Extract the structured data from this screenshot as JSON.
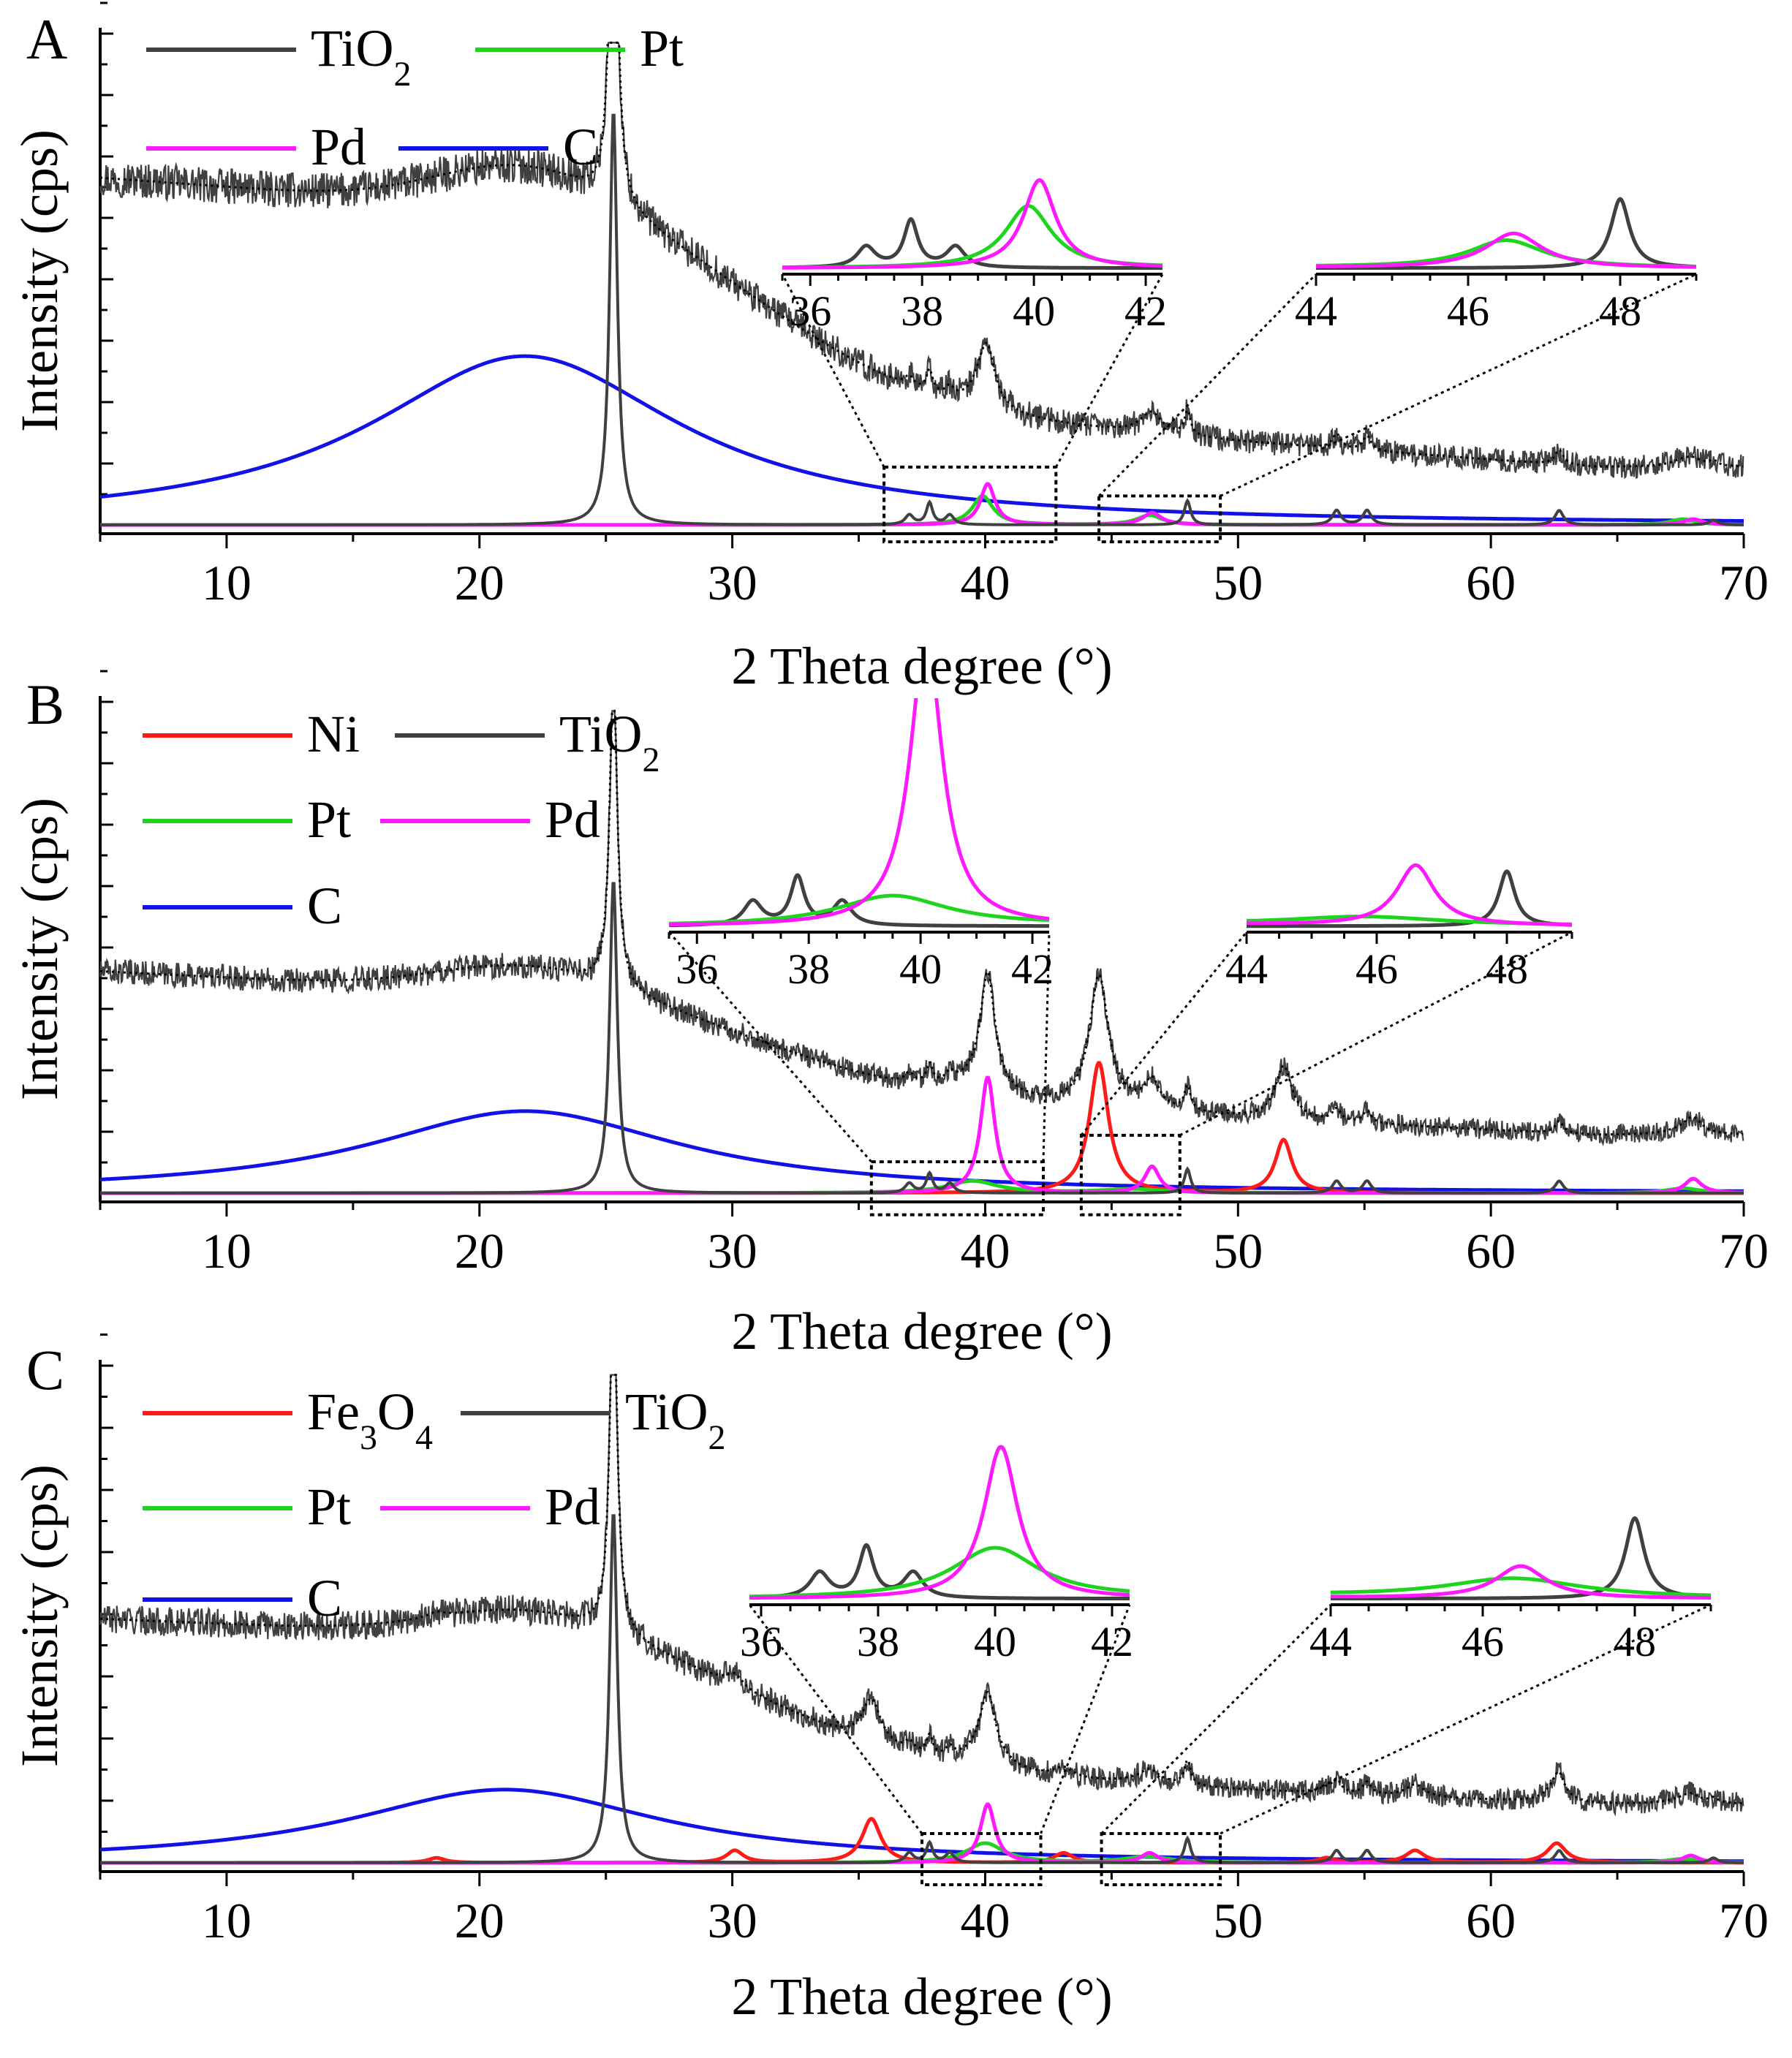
{
  "colors": {
    "TiO2": "#404040",
    "Pt": "#1fd41f",
    "Pd": "#ff19ff",
    "C": "#1212e6",
    "Ni": "#ff1a1a",
    "Fe3O4": "#ff1a1a",
    "fit": "#000000"
  },
  "chart_data": [
    {
      "panel": "A",
      "type": "line",
      "xlabel": "2 Theta degree (°)",
      "ylabel": "Intensity (cps)",
      "xlim": [
        5,
        70
      ],
      "ylim": [
        0,
        1
      ],
      "xticks": [
        10,
        20,
        30,
        40,
        50,
        60,
        70
      ],
      "legend": [
        {
          "key": "TiO2",
          "base": "TiO",
          "sub": "2",
          "post": ""
        },
        {
          "key": "Pt",
          "base": "Pt",
          "sub": "",
          "post": ""
        },
        {
          "key": "Pd",
          "base": "Pd",
          "sub": "",
          "post": ""
        },
        {
          "key": "C",
          "base": "C",
          "sub": "",
          "post": ""
        }
      ],
      "measured": {
        "baseline_amp": 0.72,
        "slope": 0.22,
        "hump_amp": 0.1,
        "hump_center": 22,
        "step_center": 28,
        "noise": 0.022
      },
      "series": [
        {
          "name": "TiO2",
          "peaks": [
            [
              25.3,
              0.86,
              0.18
            ],
            [
              37.0,
              0.02,
              0.2
            ],
            [
              37.8,
              0.045,
              0.15
            ],
            [
              38.6,
              0.02,
              0.2
            ],
            [
              48.0,
              0.05,
              0.15
            ],
            [
              53.9,
              0.03,
              0.2
            ],
            [
              55.1,
              0.03,
              0.2
            ],
            [
              62.7,
              0.03,
              0.2
            ],
            [
              68.8,
              0.01,
              0.2
            ]
          ]
        },
        {
          "name": "Pt",
          "peaks": [
            [
              39.9,
              0.06,
              0.5
            ],
            [
              46.5,
              0.02,
              0.6
            ],
            [
              67.6,
              0.012,
              0.6
            ]
          ]
        },
        {
          "name": "Pd",
          "peaks": [
            [
              40.1,
              0.085,
              0.35
            ],
            [
              46.6,
              0.025,
              0.45
            ],
            [
              68.0,
              0.012,
              0.45
            ]
          ]
        },
        {
          "name": "C",
          "peaks": [
            [
              21.8,
              0.35,
              7.5
            ]
          ]
        }
      ],
      "insets": [
        {
          "xlim": [
            35.5,
            42.3
          ],
          "xticks": [
            36,
            38,
            40,
            42
          ],
          "zoom": 4.5,
          "sel_xlim": [
            36.0,
            42.8
          ],
          "sel_y": [
            -0.035,
            0.12
          ]
        },
        {
          "xlim": [
            44,
            49
          ],
          "xticks": [
            44,
            46,
            48
          ],
          "zoom": 6.0,
          "sel_xlim": [
            44.5,
            49.3
          ],
          "sel_y": [
            -0.035,
            0.06
          ]
        }
      ]
    },
    {
      "panel": "B",
      "type": "line",
      "xlabel": "2 Theta degree (°)",
      "ylabel": "Intensity (cps)",
      "xlim": [
        5,
        70
      ],
      "ylim": [
        0,
        1
      ],
      "xticks": [
        10,
        20,
        30,
        40,
        50,
        60,
        70
      ],
      "legend": [
        {
          "key": "Ni",
          "base": "Ni",
          "sub": "",
          "post": ""
        },
        {
          "key": "TiO2",
          "base": "TiO",
          "sub": "2",
          "post": ""
        },
        {
          "key": "Pt",
          "base": "Pt",
          "sub": "",
          "post": ""
        },
        {
          "key": "Pd",
          "base": "Pd",
          "sub": "",
          "post": ""
        },
        {
          "key": "C",
          "base": "C",
          "sub": "",
          "post": ""
        }
      ],
      "measured": {
        "baseline_amp": 0.46,
        "slope": 0.15,
        "hump_amp": 0.06,
        "hump_center": 22,
        "step_center": 28,
        "noise": 0.018
      },
      "series": [
        {
          "name": "Ni",
          "peaks": [
            [
              44.5,
              0.27,
              0.45
            ],
            [
              51.8,
              0.11,
              0.4
            ]
          ]
        },
        {
          "name": "TiO2",
          "peaks": [
            [
              25.3,
              0.65,
              0.18
            ],
            [
              37.0,
              0.02,
              0.2
            ],
            [
              37.8,
              0.04,
              0.15
            ],
            [
              38.6,
              0.02,
              0.2
            ],
            [
              48.0,
              0.05,
              0.15
            ],
            [
              53.9,
              0.025,
              0.2
            ],
            [
              55.1,
              0.025,
              0.2
            ],
            [
              62.7,
              0.025,
              0.2
            ]
          ]
        },
        {
          "name": "Pt",
          "peaks": [
            [
              39.5,
              0.025,
              1.2
            ],
            [
              45.8,
              0.008,
              1.5
            ],
            [
              67.6,
              0.01,
              0.8
            ]
          ]
        },
        {
          "name": "Pd",
          "peaks": [
            [
              40.1,
              0.24,
              0.35
            ],
            [
              46.6,
              0.055,
              0.35
            ],
            [
              68.0,
              0.03,
              0.4
            ]
          ]
        },
        {
          "name": "C",
          "peaks": [
            [
              21.8,
              0.17,
              7.5
            ]
          ]
        }
      ],
      "insets": [
        {
          "xlim": [
            35.5,
            42.3
          ],
          "xticks": [
            36,
            38,
            40,
            42
          ],
          "zoom": 5.5,
          "sel_xlim": [
            35.5,
            42.3
          ],
          "sel_y": [
            -0.045,
            0.065
          ]
        },
        {
          "xlim": [
            44,
            49
          ],
          "xticks": [
            44,
            46,
            48
          ],
          "zoom": 5.0,
          "sel_xlim": [
            43.8,
            47.7
          ],
          "sel_y": [
            -0.045,
            0.12
          ]
        }
      ]
    },
    {
      "panel": "C",
      "type": "line",
      "xlabel": "2 Theta degree (°)",
      "ylabel": "Intensity (cps)",
      "xlim": [
        5,
        70
      ],
      "ylim": [
        0,
        1
      ],
      "xticks": [
        10,
        20,
        30,
        40,
        50,
        60,
        70
      ],
      "legend": [
        {
          "key": "Fe3O4",
          "base": "Fe",
          "sub": "3",
          "post": "O",
          "sub2": "4"
        },
        {
          "key": "TiO2",
          "base": "TiO",
          "sub": "2",
          "post": ""
        },
        {
          "key": "Pt",
          "base": "Pt",
          "sub": "",
          "post": ""
        },
        {
          "key": "Pd",
          "base": "Pd",
          "sub": "",
          "post": ""
        },
        {
          "key": "C",
          "base": "C",
          "sub": "",
          "post": ""
        }
      ],
      "measured": {
        "baseline_amp": 0.5,
        "slope": 0.12,
        "hump_amp": 0.06,
        "hump_center": 22,
        "step_center": 28,
        "noise": 0.02
      },
      "series": [
        {
          "name": "Fe3O4",
          "peaks": [
            [
              18.3,
              0.01,
              0.4
            ],
            [
              30.1,
              0.025,
              0.4
            ],
            [
              35.5,
              0.09,
              0.45
            ],
            [
              43.1,
              0.02,
              0.45
            ],
            [
              53.5,
              0.01,
              0.4
            ],
            [
              57.0,
              0.025,
              0.45
            ],
            [
              62.6,
              0.04,
              0.45
            ]
          ]
        },
        {
          "name": "TiO2",
          "peaks": [
            [
              25.3,
              0.72,
              0.18
            ],
            [
              37.0,
              0.02,
              0.2
            ],
            [
              37.8,
              0.04,
              0.15
            ],
            [
              38.6,
              0.02,
              0.2
            ],
            [
              48.0,
              0.05,
              0.15
            ],
            [
              53.9,
              0.025,
              0.2
            ],
            [
              55.1,
              0.025,
              0.2
            ],
            [
              62.7,
              0.025,
              0.2
            ],
            [
              68.8,
              0.01,
              0.2
            ]
          ]
        },
        {
          "name": "Pt",
          "peaks": [
            [
              40.0,
              0.04,
              0.9
            ],
            [
              46.4,
              0.012,
              1.1
            ],
            [
              67.6,
              0.008,
              0.8
            ]
          ]
        },
        {
          "name": "Pd",
          "peaks": [
            [
              40.1,
              0.12,
              0.35
            ],
            [
              46.5,
              0.02,
              0.4
            ],
            [
              67.9,
              0.015,
              0.4
            ]
          ]
        },
        {
          "name": "C",
          "peaks": [
            [
              21.0,
              0.15,
              7.5
            ]
          ]
        }
      ],
      "insets": [
        {
          "xlim": [
            35.8,
            42.3
          ],
          "xticks": [
            36,
            38,
            40,
            42
          ],
          "zoom": 5.5,
          "sel_xlim": [
            37.5,
            42.2
          ],
          "sel_y": [
            -0.045,
            0.06
          ]
        },
        {
          "xlim": [
            44,
            49
          ],
          "xticks": [
            44,
            46,
            48
          ],
          "zoom": 7.0,
          "sel_xlim": [
            44.6,
            49.3
          ],
          "sel_y": [
            -0.045,
            0.06
          ]
        }
      ]
    }
  ]
}
